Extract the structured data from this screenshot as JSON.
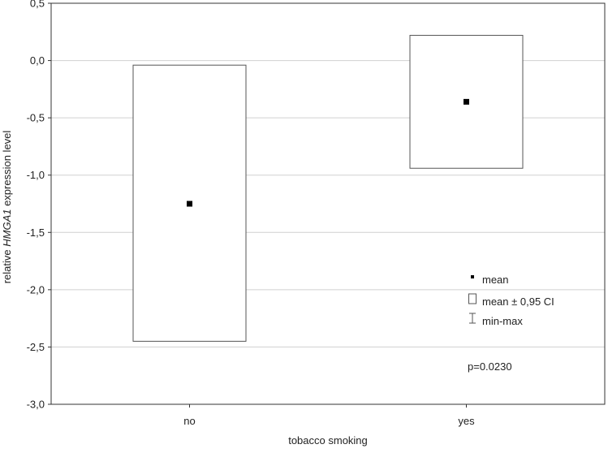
{
  "chart_data": {
    "type": "box",
    "xlabel": "tobacco smoking",
    "ylabel": {
      "prefix": "relative ",
      "italic": "HMGA1",
      "suffix": " expression level"
    },
    "ylim": [
      -3.0,
      0.5
    ],
    "yticks": [
      0.5,
      0.0,
      -0.5,
      -1.0,
      -1.5,
      -2.0,
      -2.5,
      -3.0
    ],
    "ytick_labels": [
      "0,5",
      "0,0",
      "-0,5",
      "-1,0",
      "-1,5",
      "-2,0",
      "-2,5",
      "-3,0"
    ],
    "grid": "horizontal",
    "categories": [
      "no",
      "yes"
    ],
    "groups": [
      {
        "category": "no",
        "mean": -1.25,
        "ci_low": -2.45,
        "ci_high": -0.04
      },
      {
        "category": "yes",
        "mean": -0.36,
        "ci_low": -0.94,
        "ci_high": 0.22
      }
    ],
    "legend": {
      "position": "lower-right",
      "items": [
        {
          "label": "mean",
          "symbol": "mean-marker"
        },
        {
          "label": "mean ± 0,95 CI",
          "symbol": "ci-box"
        },
        {
          "label": "min-max",
          "symbol": "whisker"
        }
      ]
    },
    "annotation": "p=0.0230",
    "colors": {
      "marker": "#000000",
      "box_stroke": "#555555",
      "grid": "#d0d0d0",
      "axis": "#333333"
    }
  }
}
